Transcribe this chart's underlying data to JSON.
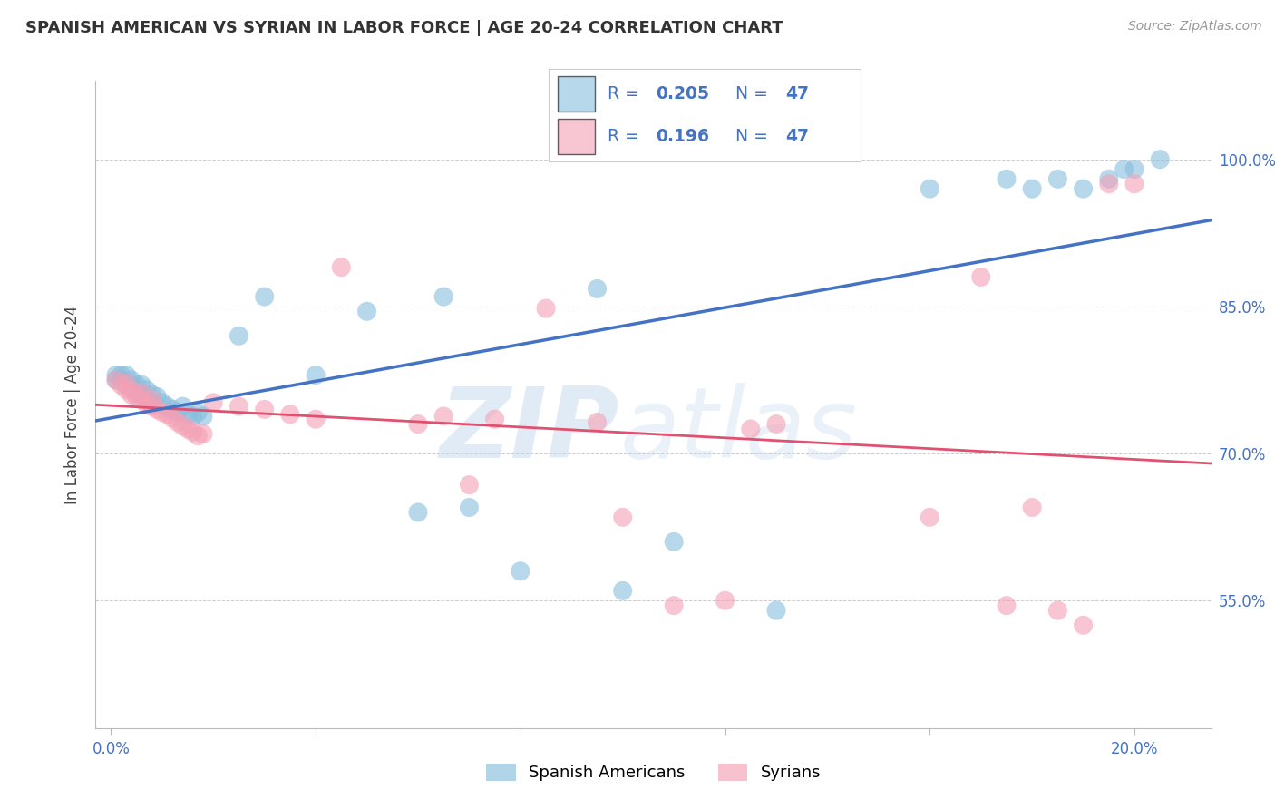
{
  "title": "SPANISH AMERICAN VS SYRIAN IN LABOR FORCE | AGE 20-24 CORRELATION CHART",
  "source": "Source: ZipAtlas.com",
  "ylabel": "In Labor Force | Age 20-24",
  "R_blue": 0.205,
  "N_blue": 47,
  "R_pink": 0.196,
  "N_pink": 47,
  "blue_color": "#87BEDD",
  "pink_color": "#F4A0B5",
  "line_blue": "#4472C4",
  "line_pink": "#E05070",
  "legend_label_blue": "Spanish Americans",
  "legend_label_pink": "Syrians",
  "watermark_zip": "ZIP",
  "watermark_atlas": "atlas",
  "xlim": [
    -0.003,
    0.215
  ],
  "ylim": [
    0.42,
    1.08
  ],
  "x_ticks": [
    0.0,
    0.04,
    0.08,
    0.12,
    0.16,
    0.2
  ],
  "y_ticks": [
    0.55,
    0.7,
    0.85,
    1.0
  ],
  "scatter_blue_x": [
    0.001,
    0.001,
    0.002,
    0.002,
    0.003,
    0.003,
    0.004,
    0.004,
    0.005,
    0.005,
    0.006,
    0.006,
    0.007,
    0.007,
    0.008,
    0.008,
    0.009,
    0.01,
    0.011,
    0.012,
    0.013,
    0.014,
    0.015,
    0.016,
    0.017,
    0.018,
    0.025,
    0.03,
    0.04,
    0.05,
    0.06,
    0.065,
    0.07,
    0.08,
    0.095,
    0.1,
    0.11,
    0.13,
    0.16,
    0.175,
    0.18,
    0.185,
    0.19,
    0.195,
    0.198,
    0.2,
    0.205
  ],
  "scatter_blue_y": [
    0.775,
    0.78,
    0.775,
    0.78,
    0.77,
    0.78,
    0.768,
    0.775,
    0.762,
    0.77,
    0.76,
    0.77,
    0.755,
    0.765,
    0.75,
    0.76,
    0.758,
    0.752,
    0.748,
    0.745,
    0.742,
    0.748,
    0.74,
    0.738,
    0.742,
    0.738,
    0.82,
    0.86,
    0.78,
    0.845,
    0.64,
    0.86,
    0.645,
    0.58,
    0.868,
    0.56,
    0.61,
    0.54,
    0.97,
    0.98,
    0.97,
    0.98,
    0.97,
    0.98,
    0.99,
    0.99,
    1.0
  ],
  "scatter_pink_x": [
    0.001,
    0.002,
    0.003,
    0.003,
    0.004,
    0.004,
    0.005,
    0.006,
    0.006,
    0.007,
    0.008,
    0.008,
    0.009,
    0.01,
    0.011,
    0.012,
    0.013,
    0.014,
    0.015,
    0.016,
    0.017,
    0.018,
    0.02,
    0.025,
    0.03,
    0.035,
    0.04,
    0.045,
    0.06,
    0.065,
    0.07,
    0.075,
    0.085,
    0.095,
    0.1,
    0.11,
    0.12,
    0.125,
    0.13,
    0.16,
    0.17,
    0.175,
    0.18,
    0.185,
    0.19,
    0.195,
    0.2
  ],
  "scatter_pink_y": [
    0.775,
    0.77,
    0.772,
    0.765,
    0.765,
    0.76,
    0.758,
    0.755,
    0.762,
    0.75,
    0.748,
    0.755,
    0.745,
    0.742,
    0.74,
    0.736,
    0.732,
    0.728,
    0.725,
    0.722,
    0.718,
    0.72,
    0.752,
    0.748,
    0.745,
    0.74,
    0.735,
    0.89,
    0.73,
    0.738,
    0.668,
    0.735,
    0.848,
    0.732,
    0.635,
    0.545,
    0.55,
    0.725,
    0.73,
    0.635,
    0.88,
    0.545,
    0.645,
    0.54,
    0.525,
    0.975,
    0.975
  ]
}
